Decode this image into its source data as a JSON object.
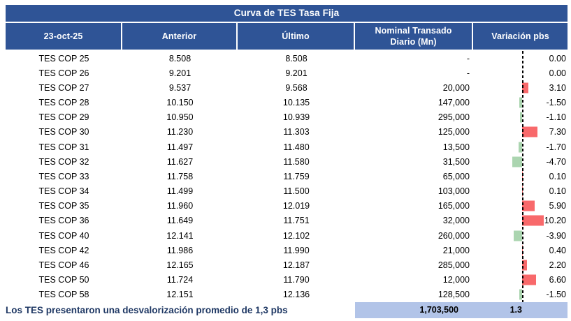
{
  "title": "Curva de TES Tasa Fija",
  "headers": [
    {
      "lines": [
        "23-oct-25"
      ]
    },
    {
      "lines": [
        "Anterior"
      ]
    },
    {
      "lines": [
        "Último"
      ]
    },
    {
      "lines": [
        "Nominal Transado",
        "Diario (Mn)"
      ]
    },
    {
      "lines": [
        "Variación pbs"
      ]
    }
  ],
  "chart_data": {
    "type": "table",
    "title": "Curva de TES Tasa Fija",
    "columns": [
      "23-oct-25",
      "Anterior",
      "Último",
      "Nominal Transado Diario (Mn)",
      "Variación pbs"
    ],
    "rows": [
      {
        "label": "TES COP 25",
        "anterior": "8.508",
        "ultimo": "8.508",
        "nominal": "-",
        "variacion": "0.00",
        "variacion_value": 0.0
      },
      {
        "label": "TES COP 26",
        "anterior": "9.201",
        "ultimo": "9.201",
        "nominal": "-",
        "variacion": "0.00",
        "variacion_value": 0.0
      },
      {
        "label": "TES COP 27",
        "anterior": "9.537",
        "ultimo": "9.568",
        "nominal": "20,000",
        "variacion": "3.10",
        "variacion_value": 3.1
      },
      {
        "label": "TES COP 28",
        "anterior": "10.150",
        "ultimo": "10.135",
        "nominal": "147,000",
        "variacion": "-1.50",
        "variacion_value": -1.5
      },
      {
        "label": "TES COP 29",
        "anterior": "10.950",
        "ultimo": "10.939",
        "nominal": "295,000",
        "variacion": "-1.10",
        "variacion_value": -1.1
      },
      {
        "label": "TES COP 30",
        "anterior": "11.230",
        "ultimo": "11.303",
        "nominal": "125,000",
        "variacion": "7.30",
        "variacion_value": 7.3
      },
      {
        "label": "TES COP 31",
        "anterior": "11.497",
        "ultimo": "11.480",
        "nominal": "13,500",
        "variacion": "-1.70",
        "variacion_value": -1.7
      },
      {
        "label": "TES COP 32",
        "anterior": "11.627",
        "ultimo": "11.580",
        "nominal": "31,500",
        "variacion": "-4.70",
        "variacion_value": -4.7
      },
      {
        "label": "TES COP 33",
        "anterior": "11.758",
        "ultimo": "11.759",
        "nominal": "65,000",
        "variacion": "0.10",
        "variacion_value": 0.1
      },
      {
        "label": "TES COP 34",
        "anterior": "11.499",
        "ultimo": "11.500",
        "nominal": "103,000",
        "variacion": "0.10",
        "variacion_value": 0.1
      },
      {
        "label": "TES COP 35",
        "anterior": "11.960",
        "ultimo": "12.019",
        "nominal": "165,000",
        "variacion": "5.90",
        "variacion_value": 5.9
      },
      {
        "label": "TES COP 36",
        "anterior": "11.649",
        "ultimo": "11.751",
        "nominal": "32,000",
        "variacion": "10.20",
        "variacion_value": 10.2
      },
      {
        "label": "TES COP 40",
        "anterior": "12.141",
        "ultimo": "12.102",
        "nominal": "260,000",
        "variacion": "-3.90",
        "variacion_value": -3.9
      },
      {
        "label": "TES COP 42",
        "anterior": "11.986",
        "ultimo": "11.990",
        "nominal": "21,000",
        "variacion": "0.40",
        "variacion_value": 0.4
      },
      {
        "label": "TES COP 46",
        "anterior": "12.165",
        "ultimo": "12.187",
        "nominal": "285,000",
        "variacion": "2.20",
        "variacion_value": 2.2
      },
      {
        "label": "TES COP 50",
        "anterior": "11.724",
        "ultimo": "11.790",
        "nominal": "12,000",
        "variacion": "6.60",
        "variacion_value": 6.6
      },
      {
        "label": "TES COP 58",
        "anterior": "12.151",
        "ultimo": "12.136",
        "nominal": "128,500",
        "variacion": "-1.50",
        "variacion_value": -1.5
      }
    ],
    "embedded_bars": {
      "type": "bar",
      "orientation": "horizontal",
      "axis": "zero-centered dashed line",
      "values": [
        0.0,
        0.0,
        3.1,
        -1.5,
        -1.1,
        7.3,
        -1.7,
        -4.7,
        0.1,
        0.1,
        5.9,
        10.2,
        -3.9,
        0.4,
        2.2,
        6.6,
        -1.5
      ]
    }
  },
  "summary": {
    "nominal_total": "1,703,500",
    "variacion_avg": "1.3"
  },
  "footer_note": "Los TES presentaron una desvalorización promedio de 1,3 pbs",
  "colors": {
    "header_bg": "#2F5496",
    "summary_bg": "#B2C4E8",
    "positive_bar": "#F8696B",
    "negative_bar": "#ABD5B0",
    "footer_text": "#1F3864"
  }
}
